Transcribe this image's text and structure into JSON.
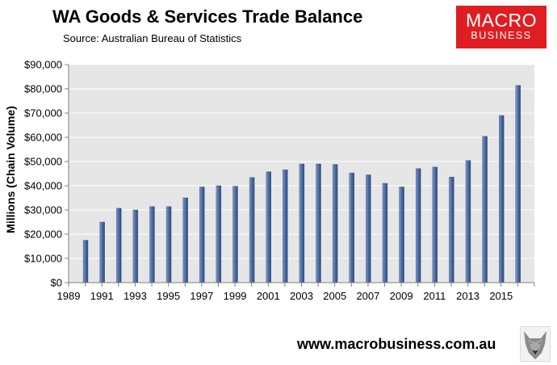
{
  "header": {
    "title": "WA Goods & Services Trade Balance",
    "source": "Source:  Australian Bureau of Statistics"
  },
  "logo": {
    "line1": "MACRO",
    "line2": "BUSINESS",
    "bg_color": "#e01e22"
  },
  "footer": {
    "url": "www.macrobusiness.com.au"
  },
  "chart_data": {
    "type": "bar",
    "title": "WA Goods & Services Trade Balance",
    "ylabel": "Millions (Chain Volume)",
    "xlabel": "",
    "ylim": [
      0,
      90000
    ],
    "y_ticks": [
      "$0",
      "$10,000",
      "$20,000",
      "$30,000",
      "$40,000",
      "$50,000",
      "$60,000",
      "$70,000",
      "$80,000",
      "$90,000"
    ],
    "x_ticks": [
      "1989",
      "1991",
      "1993",
      "1995",
      "1997",
      "1999",
      "2001",
      "2003",
      "2005",
      "2007",
      "2009",
      "2011",
      "2013",
      "2015"
    ],
    "categories": [
      "1990",
      "1991",
      "1992",
      "1993",
      "1994",
      "1995",
      "1996",
      "1997",
      "1998",
      "1999",
      "2000",
      "2001",
      "2002",
      "2003",
      "2004",
      "2005",
      "2006",
      "2007",
      "2008",
      "2009",
      "2010",
      "2011",
      "2012",
      "2013",
      "2014",
      "2015",
      "2016"
    ],
    "values": [
      17500,
      25000,
      30700,
      30000,
      31400,
      31400,
      35000,
      39500,
      40000,
      39800,
      43400,
      45800,
      46600,
      49000,
      49000,
      48800,
      45300,
      44500,
      41000,
      39500,
      47100,
      47700,
      43600,
      50400,
      60400,
      69000,
      81400
    ],
    "bar_color": "#4f6fa5",
    "plot_bg": "#e6e6e6",
    "grid": true,
    "legend": "none"
  }
}
